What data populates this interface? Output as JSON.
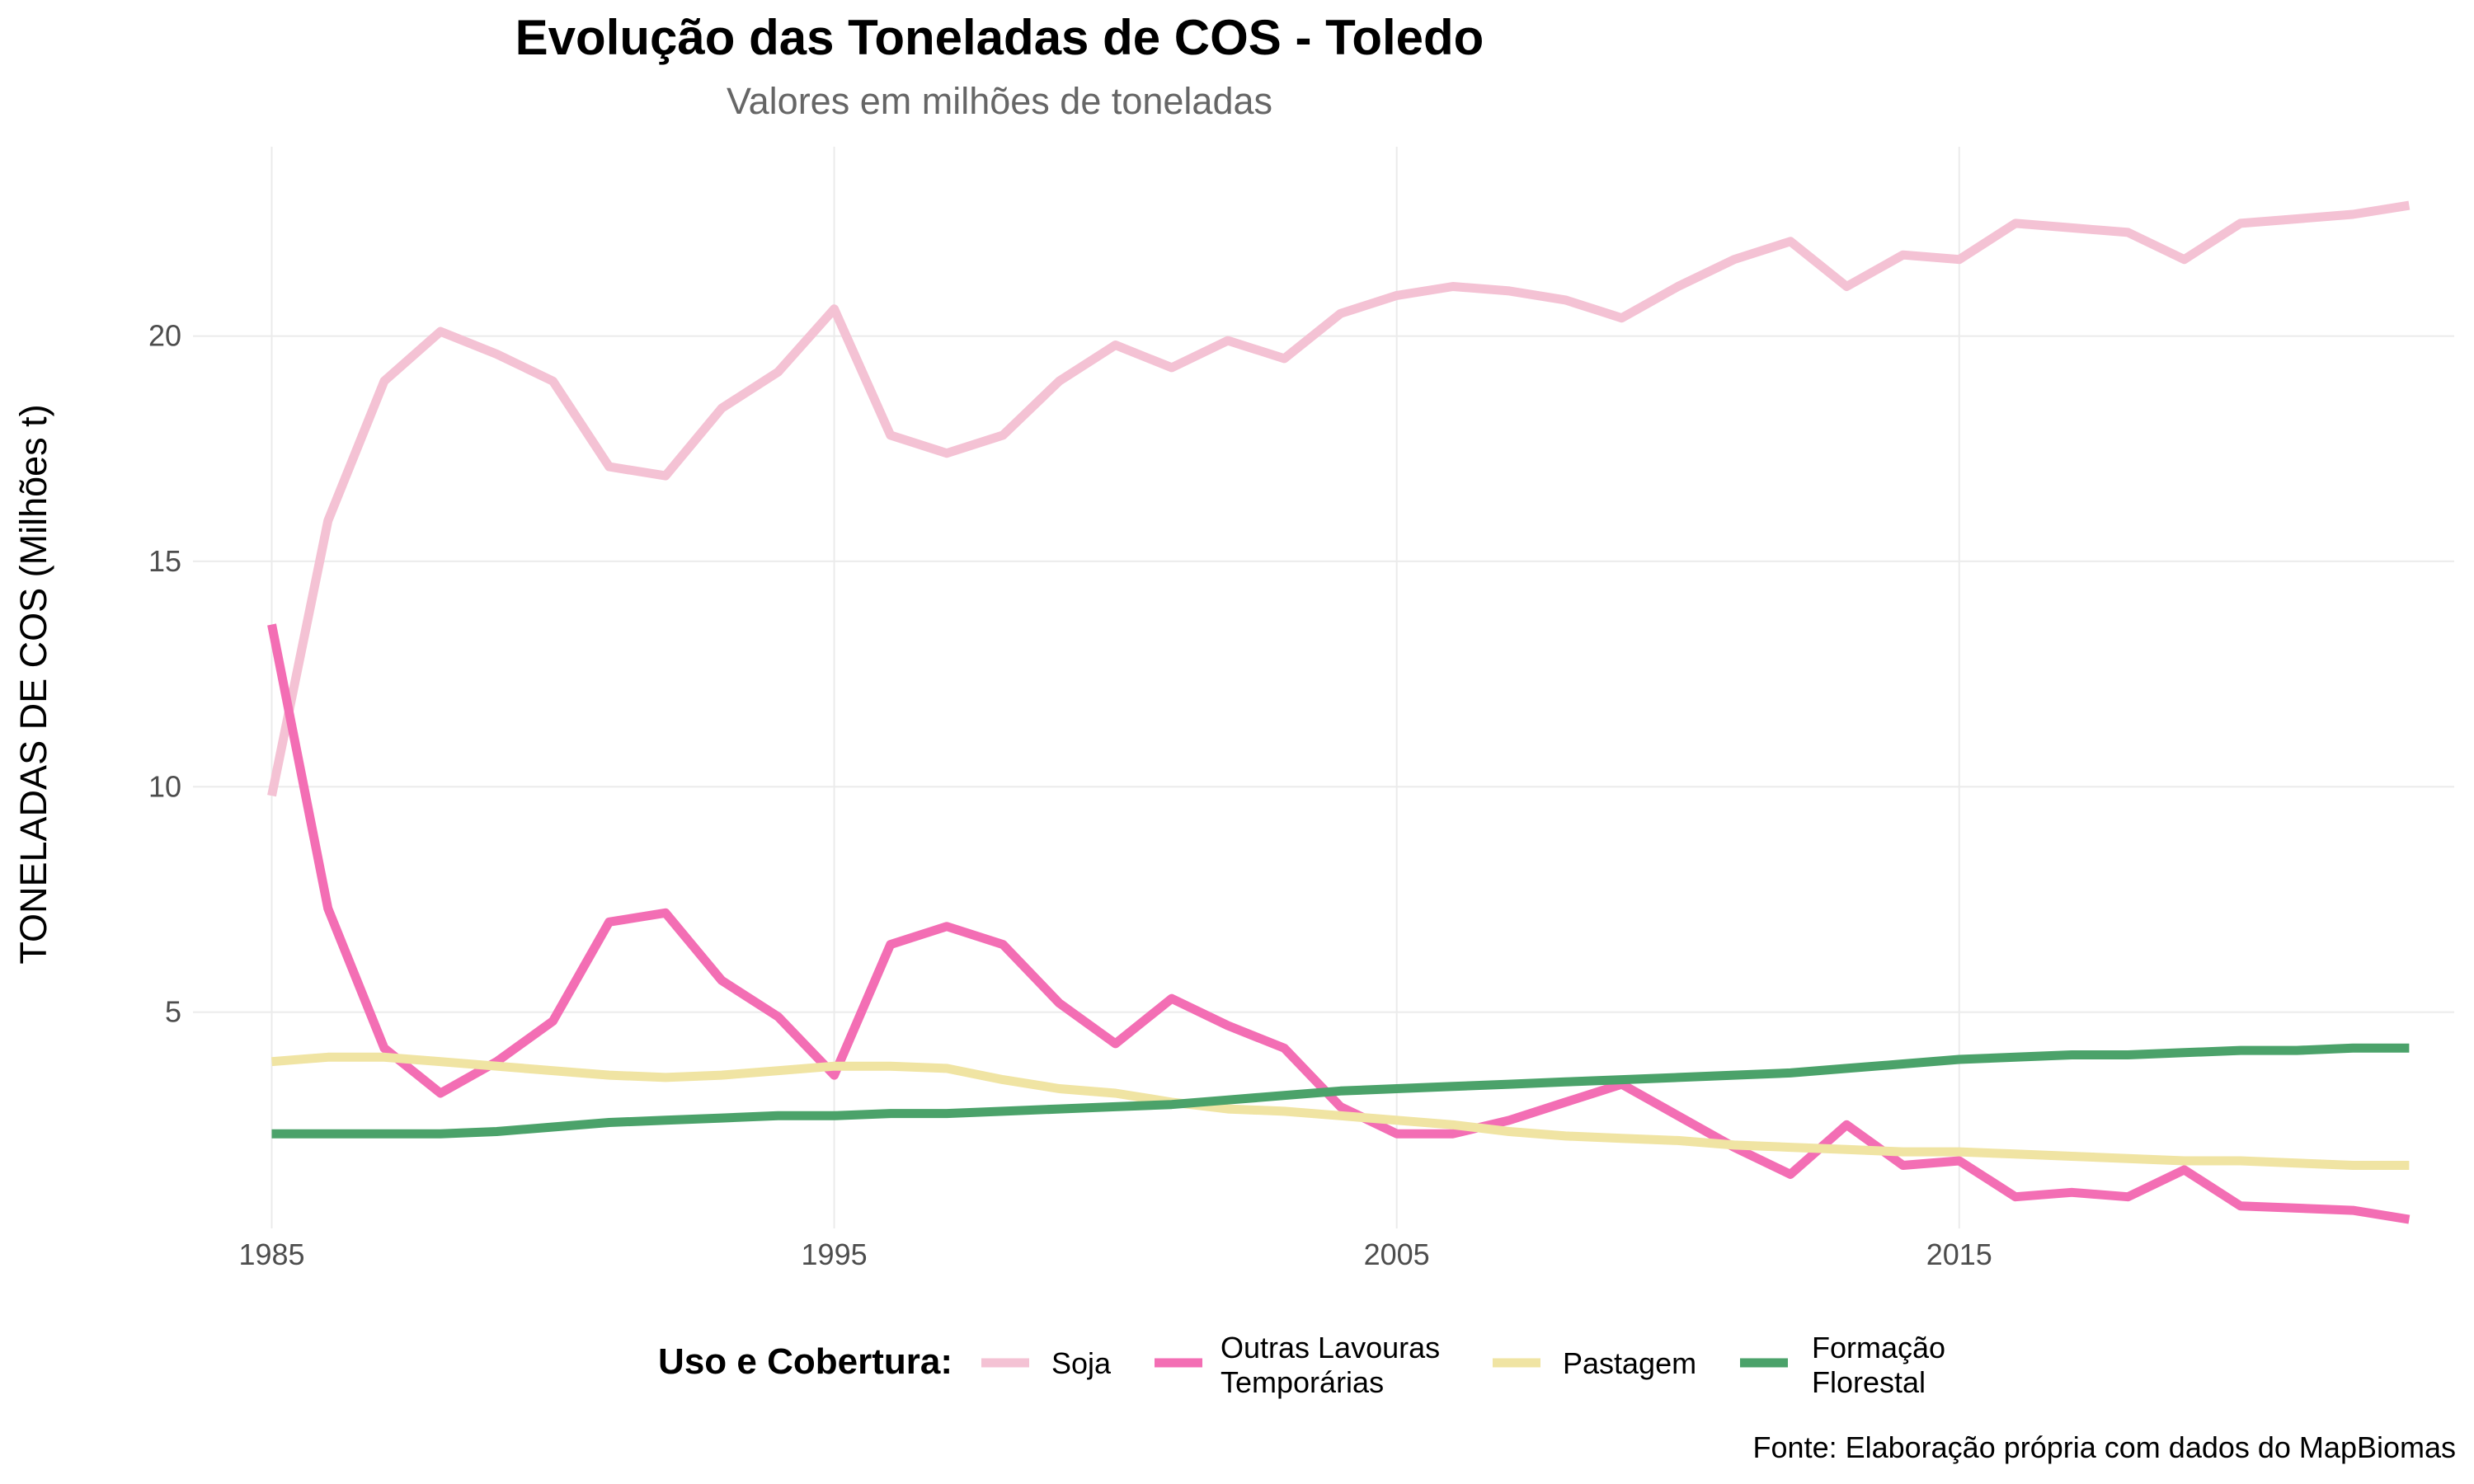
{
  "chart_data": {
    "type": "line",
    "title": "Evolução das Toneladas de COS - Toledo",
    "subtitle": "Valores em milhões de toneladas",
    "xlabel": "",
    "ylabel": "TONELADAS DE COS (Milhões t)",
    "xlim": [
      1983.6,
      2023.8
    ],
    "ylim": [
      0.2,
      24.2
    ],
    "x_ticks": [
      1985,
      1995,
      2005,
      2015
    ],
    "y_ticks": [
      5,
      10,
      15,
      20
    ],
    "grid": true,
    "legend": {
      "title": "Uso e Cobertura:",
      "position": "bottom"
    },
    "caption": "Fonte: Elaboração própria com dados do MapBiomas",
    "x": [
      1985,
      1986,
      1987,
      1988,
      1989,
      1990,
      1991,
      1992,
      1993,
      1994,
      1995,
      1996,
      1997,
      1998,
      1999,
      2000,
      2001,
      2002,
      2003,
      2004,
      2005,
      2006,
      2007,
      2008,
      2009,
      2010,
      2011,
      2012,
      2013,
      2014,
      2015,
      2016,
      2017,
      2018,
      2019,
      2020,
      2021,
      2022,
      2023
    ],
    "series": [
      {
        "name": "Soja",
        "color": "#F4C2D4",
        "values": [
          9.8,
          15.9,
          19.0,
          20.1,
          19.6,
          19.0,
          17.1,
          16.9,
          18.4,
          19.2,
          20.6,
          17.8,
          17.4,
          17.8,
          19.0,
          19.8,
          19.3,
          19.9,
          19.5,
          20.5,
          20.9,
          21.1,
          21.0,
          20.8,
          20.4,
          21.1,
          21.7,
          22.1,
          21.1,
          21.8,
          21.7,
          22.5,
          22.4,
          22.3,
          21.7,
          22.5,
          22.6,
          22.7,
          22.9
        ]
      },
      {
        "name": "Outras Lavouras\nTemporárias",
        "color": "#F36EB4",
        "values": [
          13.6,
          7.3,
          4.2,
          3.2,
          3.9,
          4.8,
          7.0,
          7.2,
          5.7,
          4.9,
          3.6,
          6.5,
          6.9,
          6.5,
          5.2,
          4.3,
          5.3,
          4.7,
          4.2,
          2.9,
          2.3,
          2.3,
          2.6,
          3.0,
          3.4,
          2.7,
          2.0,
          1.4,
          2.5,
          1.6,
          1.7,
          0.9,
          1.0,
          0.9,
          1.5,
          0.7,
          0.65,
          0.6,
          0.4
        ]
      },
      {
        "name": "Pastagem",
        "color": "#F0E4A3",
        "values": [
          3.9,
          4.0,
          4.0,
          3.9,
          3.8,
          3.7,
          3.6,
          3.55,
          3.6,
          3.7,
          3.8,
          3.8,
          3.75,
          3.5,
          3.3,
          3.2,
          3.0,
          2.85,
          2.8,
          2.7,
          2.6,
          2.5,
          2.35,
          2.25,
          2.2,
          2.15,
          2.05,
          2.0,
          1.95,
          1.9,
          1.9,
          1.85,
          1.8,
          1.75,
          1.7,
          1.7,
          1.65,
          1.6,
          1.6
        ]
      },
      {
        "name": "Formação\nFlorestal",
        "color": "#4BA26A",
        "values": [
          2.3,
          2.3,
          2.3,
          2.3,
          2.35,
          2.45,
          2.55,
          2.6,
          2.65,
          2.7,
          2.7,
          2.75,
          2.75,
          2.8,
          2.85,
          2.9,
          2.95,
          3.05,
          3.15,
          3.25,
          3.3,
          3.35,
          3.4,
          3.45,
          3.5,
          3.55,
          3.6,
          3.65,
          3.75,
          3.85,
          3.95,
          4.0,
          4.05,
          4.05,
          4.1,
          4.15,
          4.15,
          4.2,
          4.2
        ]
      }
    ]
  }
}
